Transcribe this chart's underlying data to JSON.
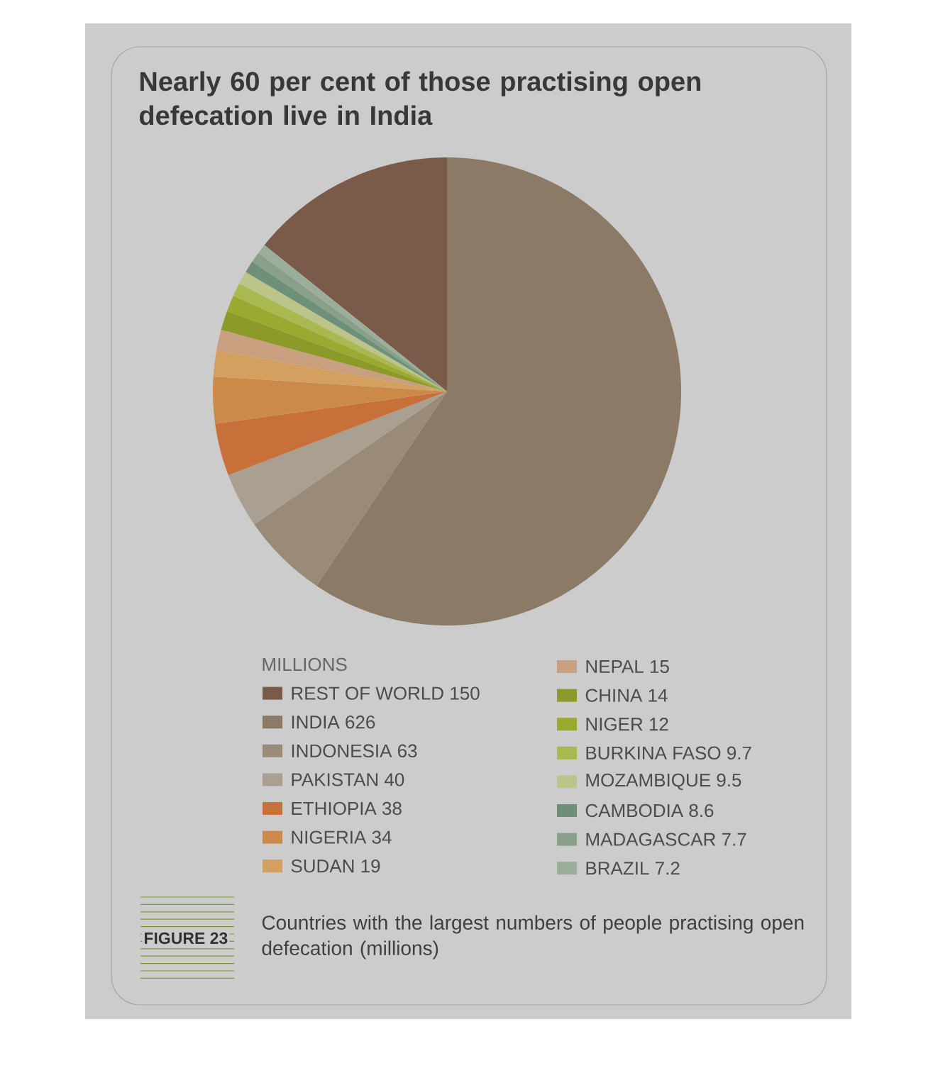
{
  "chart_data": {
    "type": "pie",
    "title": "Nearly 60 per cent of those practising open defecation live in India",
    "legend_title": "MILLIONS",
    "categories": [
      "REST OF WORLD",
      "INDIA",
      "INDONESIA",
      "PAKISTAN",
      "ETHIOPIA",
      "NIGERIA",
      "SUDAN",
      "NEPAL",
      "CHINA",
      "NIGER",
      "BURKINA FASO",
      "MOZAMBIQUE",
      "CAMBODIA",
      "MADAGASCAR",
      "BRAZIL"
    ],
    "values": [
      150,
      626,
      63,
      40,
      38,
      34,
      19,
      15,
      14,
      12,
      9.7,
      9.5,
      8.6,
      7.7,
      7.2
    ],
    "colors": [
      "#7a5a48",
      "#8b7b66",
      "#9a8b78",
      "#aaa092",
      "#c8703a",
      "#cc8a4a",
      "#d4a060",
      "#c8a080",
      "#8c9a2a",
      "#9aaa30",
      "#aab850",
      "#bcc48a",
      "#6e9078",
      "#88a088",
      "#9aae9a"
    ],
    "value_labels": [
      "150",
      "626",
      "63",
      "40",
      "38",
      "34",
      "19",
      "15",
      "14",
      "12",
      "9.7",
      "9.5",
      "8.6",
      "7.7",
      "7.2"
    ],
    "legend": "bottom",
    "annotations": [
      "FIGURE 23",
      "Countries with the largest numbers of people practising open defecation (millions)"
    ]
  }
}
